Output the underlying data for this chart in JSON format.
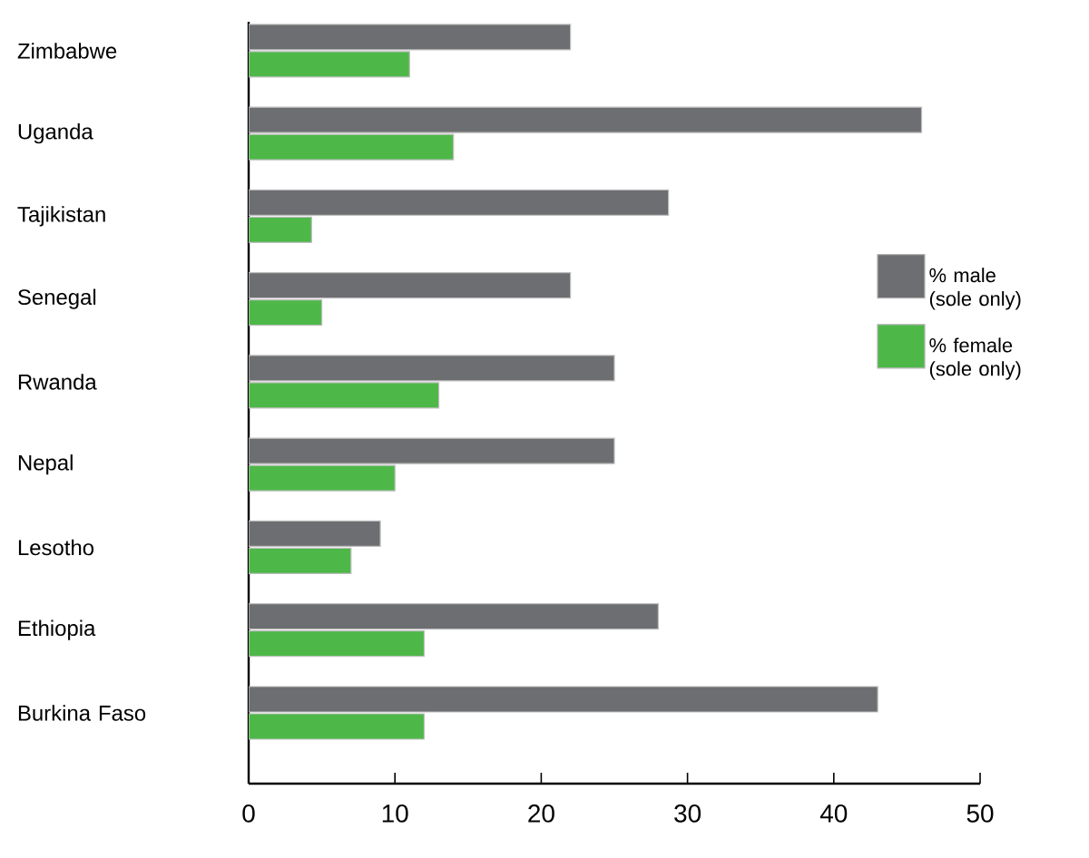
{
  "chart_data": {
    "type": "bar",
    "orientation": "horizontal",
    "categories": [
      "Zimbabwe",
      "Uganda",
      "Tajikistan",
      "Senegal",
      "Rwanda",
      "Nepal",
      "Lesotho",
      "Ethiopia",
      "Burkina Faso"
    ],
    "series": [
      {
        "name": "% male (sole only)",
        "color": "#6d6e71",
        "values": [
          22,
          46,
          28.7,
          22,
          25,
          25,
          9,
          28,
          43
        ]
      },
      {
        "name": "% female (sole only)",
        "color": "#4db848",
        "values": [
          11,
          14,
          4.3,
          5,
          13,
          10,
          7,
          12,
          12
        ]
      }
    ],
    "xlim": [
      0,
      50
    ],
    "xticks": [
      0,
      10,
      20,
      30,
      40,
      50
    ],
    "legend": "right"
  }
}
